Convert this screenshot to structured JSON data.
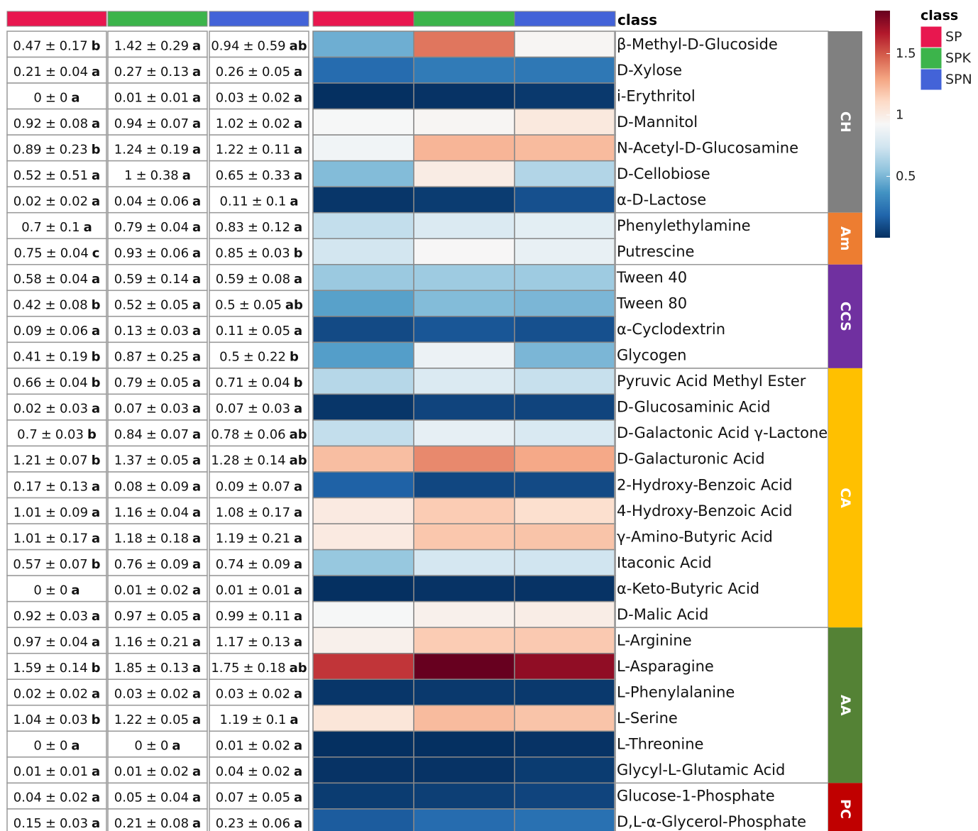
{
  "chart_data": {
    "type": "heatmap",
    "row_annotation_title": "class",
    "legend_title": "class",
    "separator": "±",
    "treatments": [
      {
        "name": "SP",
        "color": "#e8174f"
      },
      {
        "name": "SPK",
        "color": "#3cb44b"
      },
      {
        "name": "SPN",
        "color": "#4363d8"
      }
    ],
    "zlim": [
      0,
      1.85
    ],
    "zticks": [
      0.5,
      1,
      1.5
    ],
    "colorscale": [
      "#053061",
      "#2166ac",
      "#4393c3",
      "#92c5de",
      "#d1e5f0",
      "#f7f7f7",
      "#fddbc7",
      "#f4a582",
      "#d6604d",
      "#b2182b",
      "#67001f"
    ],
    "groups": [
      {
        "label": "CH",
        "color": "#808080",
        "rows": [
          {
            "name": "β-Methyl-D-Glucoside",
            "means": [
              0.47,
              1.42,
              0.94
            ],
            "sds": [
              0.17,
              0.29,
              0.59
            ],
            "letters": [
              "b",
              "a",
              "ab"
            ]
          },
          {
            "name": "D-Xylose",
            "means": [
              0.21,
              0.27,
              0.26
            ],
            "sds": [
              0.04,
              0.13,
              0.05
            ],
            "letters": [
              "a",
              "a",
              "a"
            ]
          },
          {
            "name": "i-Erythritol",
            "means": [
              0,
              0.01,
              0.03
            ],
            "sds": [
              0,
              0.01,
              0.02
            ],
            "letters": [
              "a",
              "a",
              "a"
            ]
          },
          {
            "name": "D-Mannitol",
            "means": [
              0.92,
              0.94,
              1.02
            ],
            "sds": [
              0.08,
              0.07,
              0.02
            ],
            "letters": [
              "a",
              "a",
              "a"
            ]
          },
          {
            "name": "N-Acetyl-D-Glucosamine",
            "means": [
              0.89,
              1.24,
              1.22
            ],
            "sds": [
              0.23,
              0.19,
              0.11
            ],
            "letters": [
              "b",
              "a",
              "a"
            ]
          },
          {
            "name": "D-Cellobiose",
            "means": [
              0.52,
              1,
              0.65
            ],
            "sds": [
              0.51,
              0.38,
              0.33
            ],
            "letters": [
              "a",
              "a",
              "a"
            ]
          },
          {
            "name": "α-D-Lactose",
            "means": [
              0.02,
              0.04,
              0.11
            ],
            "sds": [
              0.02,
              0.06,
              0.1
            ],
            "letters": [
              "a",
              "a",
              "a"
            ]
          }
        ]
      },
      {
        "label": "Am",
        "color": "#ed7d31",
        "rows": [
          {
            "name": "Phenylethylamine",
            "means": [
              0.7,
              0.79,
              0.83
            ],
            "sds": [
              0.1,
              0.04,
              0.12
            ],
            "letters": [
              "a",
              "a",
              "a"
            ]
          },
          {
            "name": "Putrescine",
            "means": [
              0.75,
              0.93,
              0.85
            ],
            "sds": [
              0.04,
              0.06,
              0.03
            ],
            "letters": [
              "c",
              "a",
              "b"
            ]
          }
        ]
      },
      {
        "label": "CCS",
        "color": "#7030a0",
        "rows": [
          {
            "name": "Tween 40",
            "means": [
              0.58,
              0.59,
              0.59
            ],
            "sds": [
              0.04,
              0.14,
              0.08
            ],
            "letters": [
              "a",
              "a",
              "a"
            ]
          },
          {
            "name": "Tween 80",
            "means": [
              0.42,
              0.52,
              0.5
            ],
            "sds": [
              0.08,
              0.05,
              0.05
            ],
            "letters": [
              "b",
              "a",
              "ab"
            ]
          },
          {
            "name": "α-Cyclodextrin",
            "means": [
              0.09,
              0.13,
              0.11
            ],
            "sds": [
              0.06,
              0.03,
              0.05
            ],
            "letters": [
              "a",
              "a",
              "a"
            ]
          },
          {
            "name": "Glycogen",
            "means": [
              0.41,
              0.87,
              0.5
            ],
            "sds": [
              0.19,
              0.25,
              0.22
            ],
            "letters": [
              "b",
              "a",
              "b"
            ]
          }
        ]
      },
      {
        "label": "CA",
        "color": "#ffc000",
        "rows": [
          {
            "name": "Pyruvic Acid Methyl Ester",
            "means": [
              0.66,
              0.79,
              0.71
            ],
            "sds": [
              0.04,
              0.05,
              0.04
            ],
            "letters": [
              "b",
              "a",
              "b"
            ]
          },
          {
            "name": "D-Glucosaminic Acid",
            "means": [
              0.02,
              0.07,
              0.07
            ],
            "sds": [
              0.03,
              0.03,
              0.03
            ],
            "letters": [
              "a",
              "a",
              "a"
            ]
          },
          {
            "name": "D-Galactonic Acid γ-Lactone",
            "means": [
              0.7,
              0.84,
              0.78
            ],
            "sds": [
              0.03,
              0.07,
              0.06
            ],
            "letters": [
              "b",
              "a",
              "ab"
            ]
          },
          {
            "name": "D-Galacturonic Acid",
            "means": [
              1.21,
              1.37,
              1.28
            ],
            "sds": [
              0.07,
              0.05,
              0.14
            ],
            "letters": [
              "b",
              "a",
              "ab"
            ]
          },
          {
            "name": "2-Hydroxy-Benzoic Acid",
            "means": [
              0.17,
              0.08,
              0.09
            ],
            "sds": [
              0.13,
              0.09,
              0.07
            ],
            "letters": [
              "a",
              "a",
              "a"
            ]
          },
          {
            "name": "4-Hydroxy-Benzoic Acid",
            "means": [
              1.01,
              1.16,
              1.08
            ],
            "sds": [
              0.09,
              0.04,
              0.17
            ],
            "letters": [
              "a",
              "a",
              "a"
            ]
          },
          {
            "name": "γ-Amino-Butyric Acid",
            "means": [
              1.01,
              1.18,
              1.19
            ],
            "sds": [
              0.17,
              0.18,
              0.21
            ],
            "letters": [
              "a",
              "a",
              "a"
            ]
          },
          {
            "name": "Itaconic Acid",
            "means": [
              0.57,
              0.76,
              0.74
            ],
            "sds": [
              0.07,
              0.09,
              0.09
            ],
            "letters": [
              "b",
              "a",
              "a"
            ]
          },
          {
            "name": "α-Keto-Butyric Acid",
            "means": [
              0,
              0.01,
              0.01
            ],
            "sds": [
              0,
              0.02,
              0.01
            ],
            "letters": [
              "a",
              "a",
              "a"
            ]
          },
          {
            "name": "D-Malic Acid",
            "means": [
              0.92,
              0.97,
              0.99
            ],
            "sds": [
              0.03,
              0.05,
              0.11
            ],
            "letters": [
              "a",
              "a",
              "a"
            ]
          }
        ]
      },
      {
        "label": "AA",
        "color": "#548235",
        "rows": [
          {
            "name": "L-Arginine",
            "means": [
              0.97,
              1.16,
              1.17
            ],
            "sds": [
              0.04,
              0.21,
              0.13
            ],
            "letters": [
              "a",
              "a",
              "a"
            ]
          },
          {
            "name": "L-Asparagine",
            "means": [
              1.59,
              1.85,
              1.75
            ],
            "sds": [
              0.14,
              0.13,
              0.18
            ],
            "letters": [
              "b",
              "a",
              "ab"
            ]
          },
          {
            "name": "L-Phenylalanine",
            "means": [
              0.02,
              0.03,
              0.03
            ],
            "sds": [
              0.02,
              0.02,
              0.02
            ],
            "letters": [
              "a",
              "a",
              "a"
            ]
          },
          {
            "name": "L-Serine",
            "means": [
              1.04,
              1.22,
              1.19
            ],
            "sds": [
              0.03,
              0.05,
              0.1
            ],
            "letters": [
              "b",
              "a",
              "a"
            ]
          },
          {
            "name": "L-Threonine",
            "means": [
              0,
              0,
              0.01
            ],
            "sds": [
              0,
              0,
              0.02
            ],
            "letters": [
              "a",
              "a",
              "a"
            ]
          },
          {
            "name": "Glycyl-L-Glutamic Acid",
            "means": [
              0.01,
              0.01,
              0.04
            ],
            "sds": [
              0.01,
              0.02,
              0.02
            ],
            "letters": [
              "a",
              "a",
              "a"
            ]
          }
        ]
      },
      {
        "label": "PC",
        "color": "#c00000",
        "rows": [
          {
            "name": "Glucose-1-Phosphate",
            "means": [
              0.04,
              0.05,
              0.07
            ],
            "sds": [
              0.02,
              0.04,
              0.05
            ],
            "letters": [
              "a",
              "a",
              "a"
            ]
          },
          {
            "name": "D,L-α-Glycerol-Phosphate",
            "means": [
              0.15,
              0.21,
              0.23
            ],
            "sds": [
              0.03,
              0.08,
              0.06
            ],
            "letters": [
              "a",
              "a",
              "a"
            ]
          }
        ]
      }
    ]
  }
}
